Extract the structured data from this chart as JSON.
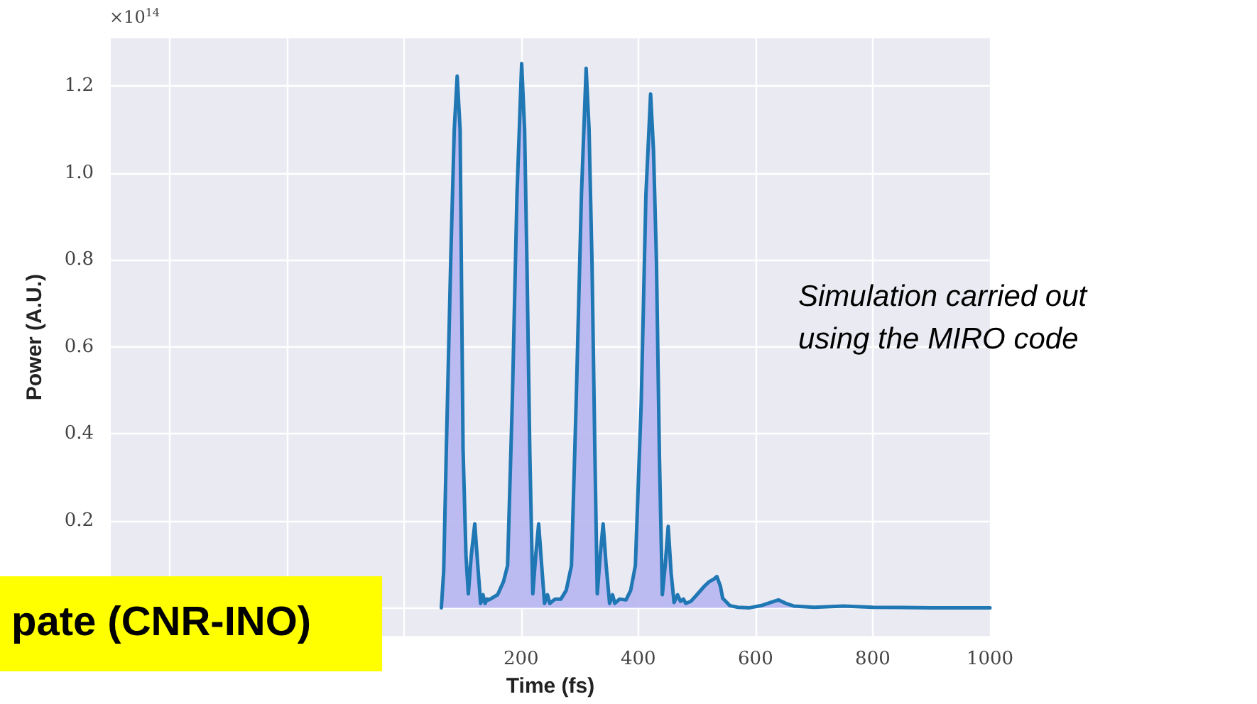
{
  "chart_data": {
    "type": "area",
    "xlabel": "Time (fs)",
    "ylabel": "Power (A.U.)",
    "annotations": [
      "×10$^{14}$",
      "Simulation carried out\nusing the MIRO code",
      "pate (CNR-INO)"
    ],
    "x": [
      64,
      68,
      72.5,
      80,
      86,
      91,
      96,
      101,
      106,
      110,
      115,
      121,
      126,
      131,
      135,
      138.6,
      142,
      145,
      160,
      170,
      177,
      185,
      193,
      201,
      206,
      210,
      215,
      220,
      225,
      230,
      235,
      240,
      245,
      249,
      258,
      268,
      277,
      286,
      294,
      303,
      311,
      316,
      321,
      326,
      330,
      335,
      340,
      345,
      351,
      356,
      360,
      368,
      379,
      387,
      395,
      405,
      413,
      421,
      426,
      431,
      436,
      441,
      446,
      451,
      456,
      461,
      467,
      472,
      477,
      481,
      490,
      500,
      513,
      521,
      528,
      534,
      540,
      544,
      556,
      570,
      590,
      610,
      625,
      639,
      652,
      665,
      700,
      750,
      800,
      900,
      1000
    ],
    "series": [
      {
        "color": "#1f77b4",
        "values": [
          0,
          0.085,
          0.365,
          0.8,
          1.1,
          1.223,
          1.1,
          0.365,
          0.12,
          0.032,
          0.12,
          0.193,
          0.1,
          0.01,
          0.03,
          0.01,
          0.02,
          0.018,
          0.03,
          0.06,
          0.097,
          0.472,
          0.95,
          1.252,
          1.1,
          0.795,
          0.35,
          0.032,
          0.12,
          0.193,
          0.1,
          0.01,
          0.03,
          0.01,
          0.02,
          0.02,
          0.04,
          0.097,
          0.472,
          0.95,
          1.241,
          1.1,
          0.795,
          0.35,
          0.032,
          0.12,
          0.193,
          0.1,
          0.01,
          0.03,
          0.01,
          0.02,
          0.018,
          0.04,
          0.097,
          0.472,
          0.95,
          1.182,
          1.05,
          0.795,
          0.35,
          0.03,
          0.1,
          0.187,
          0.08,
          0.012,
          0.03,
          0.015,
          0.02,
          0.01,
          0.015,
          0.03,
          0.05,
          0.06,
          0.065,
          0.072,
          0.05,
          0.022,
          0.005,
          0.001,
          0,
          0.005,
          0.012,
          0.018,
          0.01,
          0.004,
          0.001,
          0.004,
          0.001,
          0,
          0
        ]
      }
    ],
    "xlim": [
      -500,
      1000
    ],
    "xticks": [
      {
        "value": -400,
        "label": null
      },
      {
        "value": -200,
        "label": null
      },
      {
        "value": 0,
        "label": null
      },
      200,
      400,
      600,
      800,
      1000
    ],
    "ylim": [
      -0.065,
      1.31
    ],
    "yticks": [
      {
        "value": 0,
        "label": null
      },
      {
        "value": 0.2,
        "label": "0.2"
      },
      {
        "value": 0.4,
        "label": "0.4"
      },
      {
        "value": 0.6,
        "label": "0.6"
      },
      {
        "value": 0.8,
        "label": "0.8"
      },
      {
        "value": 1,
        "label": "1.0"
      },
      {
        "value": 1.2,
        "label": "1.2"
      }
    ],
    "grid": true
  }
}
